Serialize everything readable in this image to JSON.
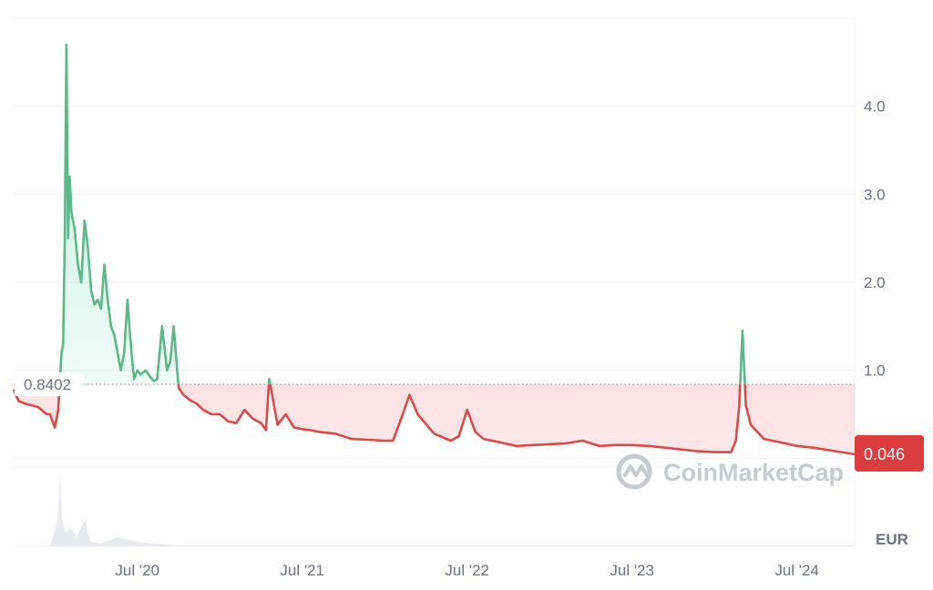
{
  "chart_data": {
    "type": "area",
    "currency": "EUR",
    "reference_price": "0.8402",
    "current_price": "0.046",
    "watermark": "CoinMarketCap",
    "y_ticks": [
      "1.0",
      "2.0",
      "3.0",
      "4.0"
    ],
    "y_tick_values": [
      1,
      2,
      3,
      4
    ],
    "x_ticks": [
      "Jul '20",
      "Jul '21",
      "Jul '22",
      "Jul '23",
      "Jul '24"
    ],
    "x_tick_values": [
      2020.5,
      2021.5,
      2022.5,
      2023.5,
      2024.5
    ],
    "xlim": [
      2019.75,
      2024.85
    ],
    "ylim": [
      -1.0,
      5.0
    ],
    "reference_value": 0.8402,
    "colors": {
      "up": "#16c784",
      "down": "#ea3943",
      "line_up": "#5bb88a",
      "line_down": "#d94a4a"
    },
    "series": [
      {
        "x": [
          2019.75,
          2019.78,
          2019.82,
          2019.86,
          2019.9,
          2019.95,
          2019.97,
          2020.0,
          2020.02,
          2020.04,
          2020.05,
          2020.06,
          2020.07,
          2020.08,
          2020.09,
          2020.1,
          2020.12,
          2020.14,
          2020.16,
          2020.18,
          2020.2,
          2020.22,
          2020.24,
          2020.26,
          2020.28,
          2020.3,
          2020.32,
          2020.34,
          2020.36,
          2020.38,
          2020.4,
          2020.42,
          2020.44,
          2020.46,
          2020.48,
          2020.5,
          2020.52,
          2020.55,
          2020.58,
          2020.6,
          2020.62,
          2020.65,
          2020.68,
          2020.7,
          2020.72,
          2020.75,
          2020.78,
          2020.82,
          2020.86,
          2020.9,
          2020.95,
          2021.0,
          2021.05,
          2021.1,
          2021.15,
          2021.2,
          2021.25,
          2021.28,
          2021.3,
          2021.35,
          2021.4,
          2021.45,
          2021.5,
          2021.55,
          2021.6,
          2021.7,
          2021.8,
          2021.9,
          2022.0,
          2022.05,
          2022.1,
          2022.15,
          2022.2,
          2022.3,
          2022.4,
          2022.45,
          2022.5,
          2022.55,
          2022.6,
          2022.7,
          2022.8,
          2022.9,
          2023.0,
          2023.1,
          2023.2,
          2023.3,
          2023.4,
          2023.5,
          2023.6,
          2023.7,
          2023.8,
          2023.9,
          2024.0,
          2024.05,
          2024.1,
          2024.13,
          2024.15,
          2024.17,
          2024.19,
          2024.22,
          2024.3,
          2024.4,
          2024.5,
          2024.6,
          2024.7,
          2024.85
        ],
        "y": [
          0.78,
          0.65,
          0.62,
          0.6,
          0.58,
          0.5,
          0.5,
          0.35,
          0.55,
          1.2,
          1.3,
          2.5,
          4.7,
          2.5,
          3.2,
          2.8,
          2.6,
          2.2,
          2.0,
          2.7,
          2.4,
          1.9,
          1.75,
          1.8,
          1.7,
          2.2,
          1.8,
          1.5,
          1.4,
          1.2,
          1.0,
          1.2,
          1.8,
          1.3,
          0.9,
          1.0,
          0.95,
          1.0,
          0.92,
          0.88,
          0.9,
          1.5,
          1.0,
          1.1,
          1.5,
          0.8,
          0.72,
          0.66,
          0.62,
          0.55,
          0.5,
          0.5,
          0.42,
          0.4,
          0.55,
          0.45,
          0.4,
          0.32,
          0.9,
          0.38,
          0.5,
          0.35,
          0.33,
          0.32,
          0.3,
          0.28,
          0.22,
          0.21,
          0.2,
          0.2,
          0.45,
          0.72,
          0.5,
          0.28,
          0.2,
          0.25,
          0.55,
          0.3,
          0.22,
          0.18,
          0.14,
          0.15,
          0.16,
          0.17,
          0.2,
          0.14,
          0.15,
          0.15,
          0.14,
          0.12,
          0.1,
          0.08,
          0.07,
          0.07,
          0.07,
          0.2,
          0.6,
          1.45,
          0.6,
          0.38,
          0.22,
          0.18,
          0.14,
          0.12,
          0.09,
          0.046
        ]
      }
    ]
  }
}
